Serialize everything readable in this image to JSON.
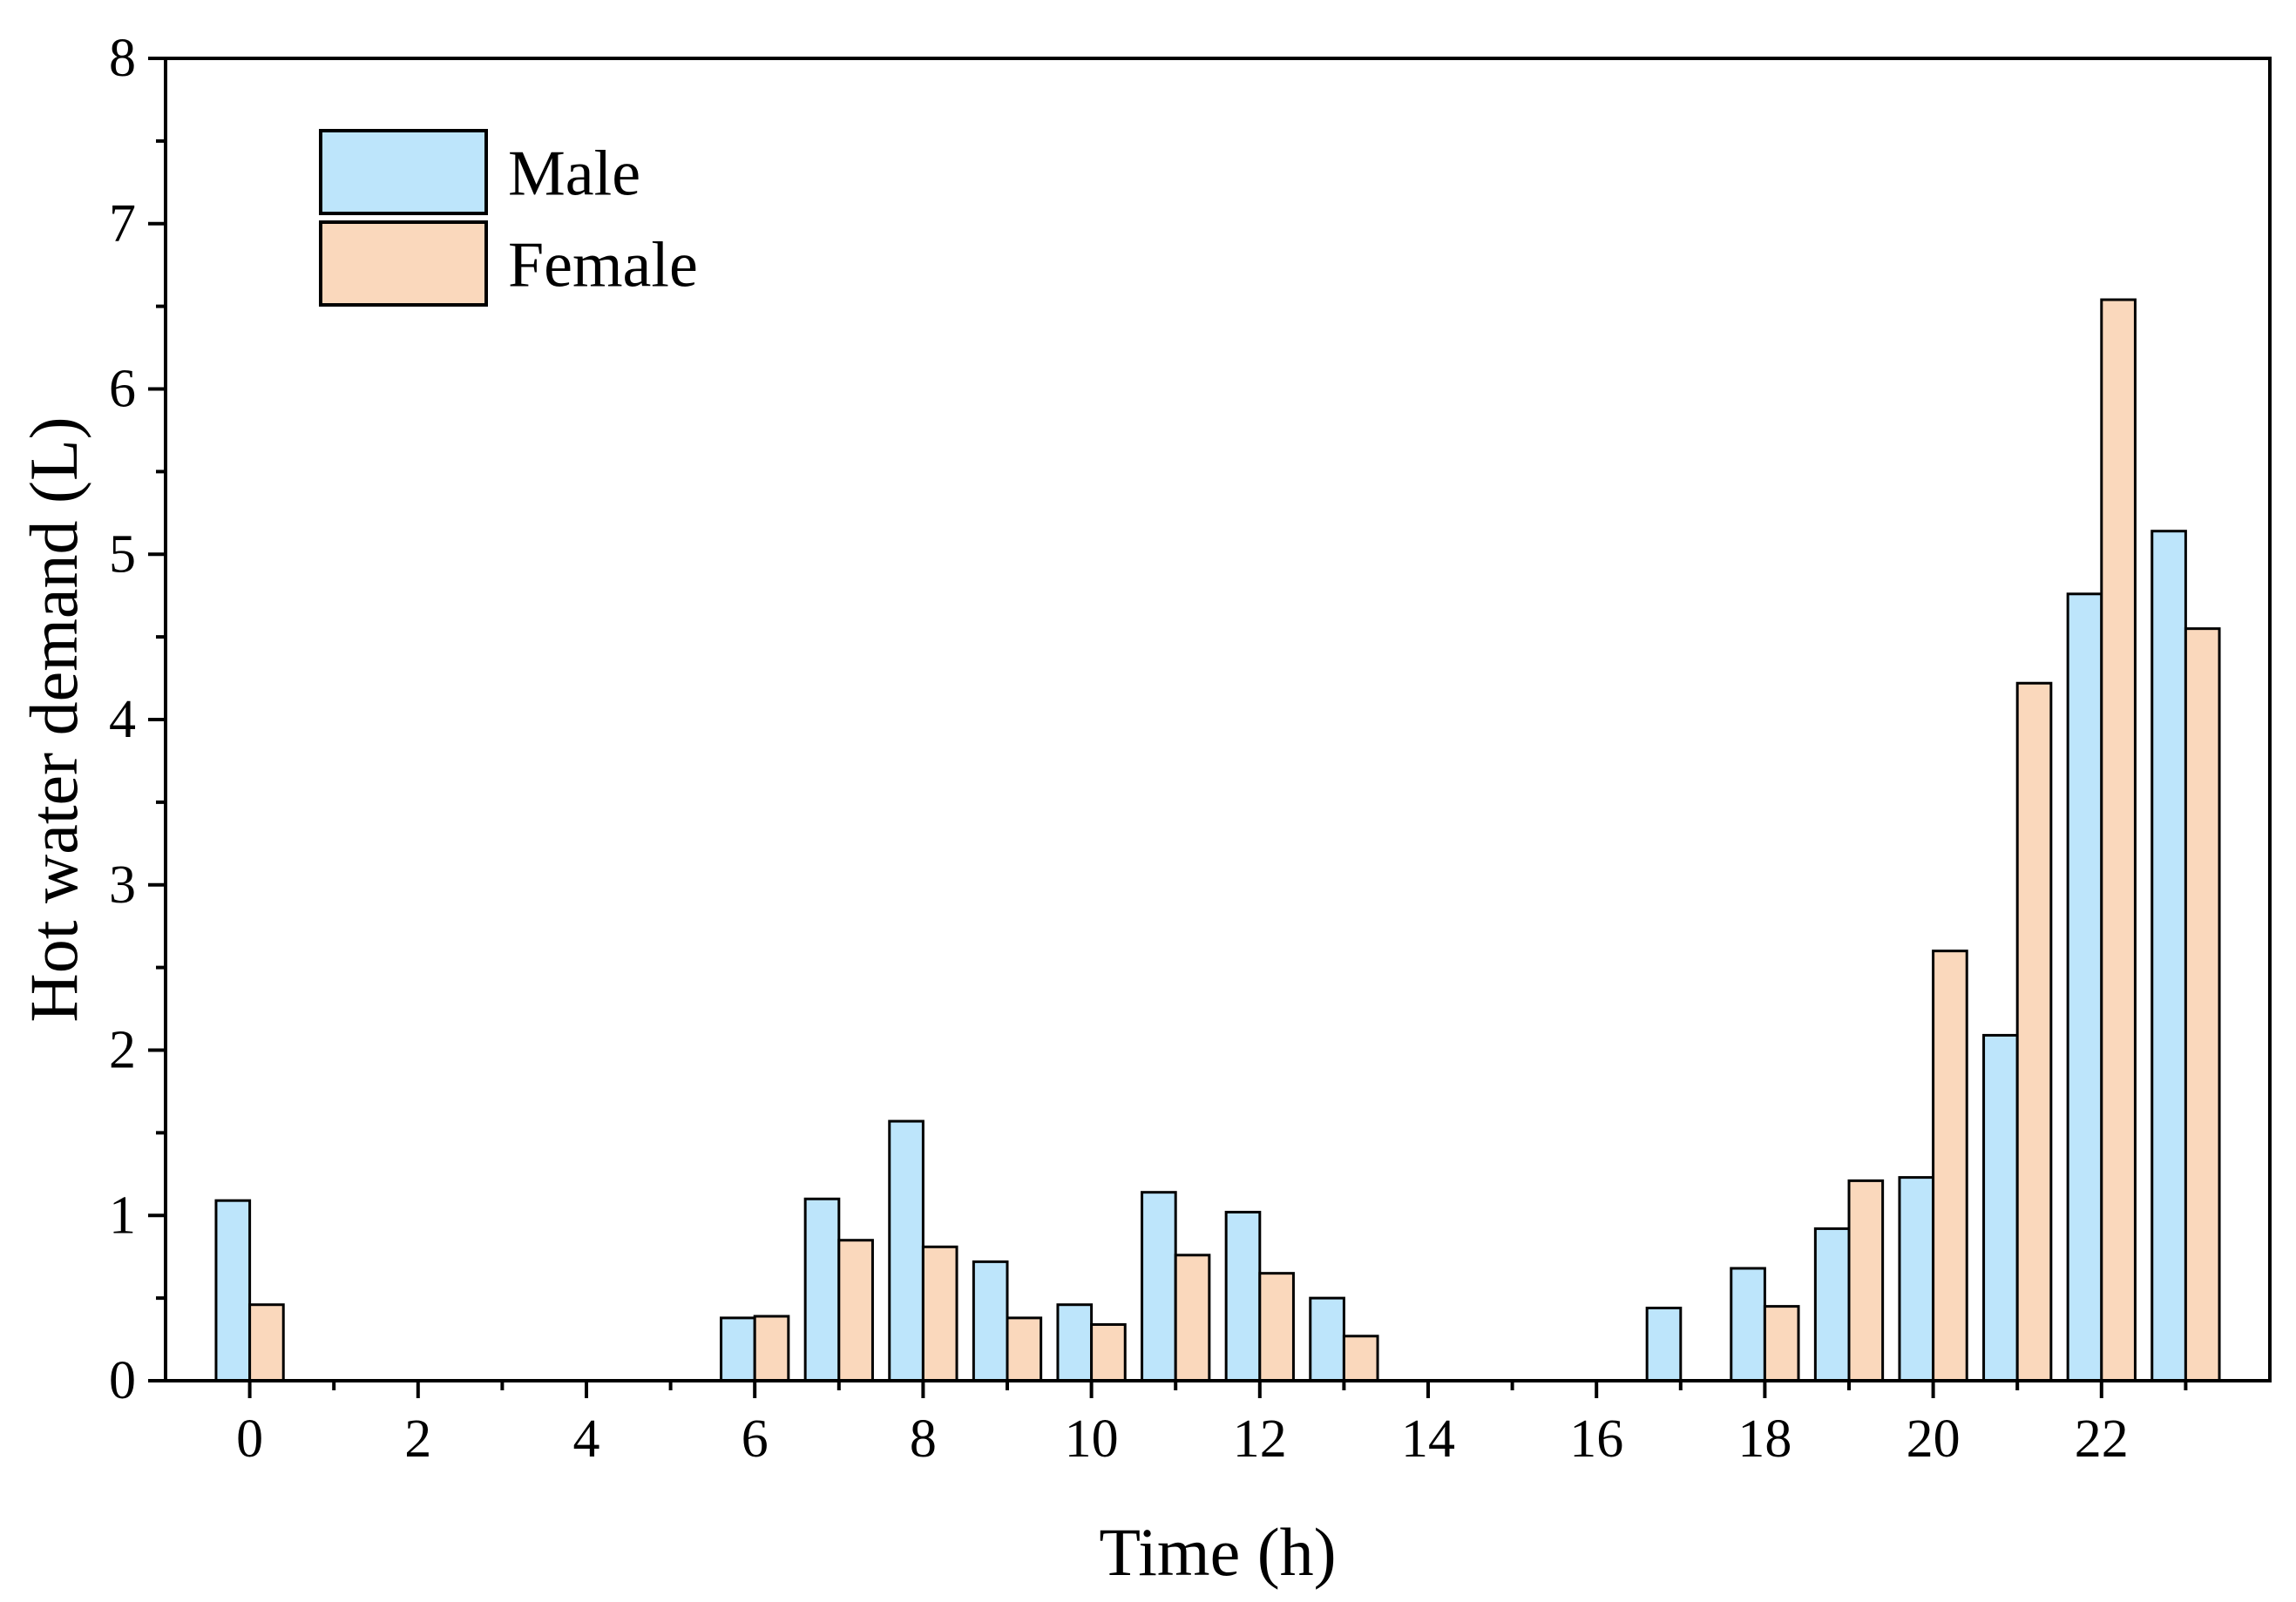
{
  "chart_data": {
    "type": "bar",
    "title": "",
    "xlabel": "Time (h)",
    "ylabel": "Hot water demand (L)",
    "x": [
      0,
      1,
      2,
      3,
      4,
      5,
      6,
      7,
      8,
      9,
      10,
      11,
      12,
      13,
      14,
      15,
      16,
      17,
      18,
      19,
      20,
      21,
      22,
      23
    ],
    "xlim": [
      -1,
      24
    ],
    "ylim": [
      0,
      8
    ],
    "x_ticks": [
      0,
      2,
      4,
      6,
      8,
      10,
      12,
      14,
      16,
      18,
      20,
      22
    ],
    "x_tick_labels": [
      "0",
      "2",
      "4",
      "6",
      "8",
      "10",
      "12",
      "14",
      "16",
      "18",
      "20",
      "22"
    ],
    "y_ticks": [
      0,
      1,
      2,
      3,
      4,
      5,
      6,
      7,
      8
    ],
    "y_tick_labels": [
      "0",
      "1",
      "2",
      "3",
      "4",
      "5",
      "6",
      "7",
      "8"
    ],
    "grid": false,
    "legend_position": "top-left",
    "series": [
      {
        "name": "Male",
        "color": "#BDE5FB",
        "values": [
          1.09,
          0,
          0,
          0,
          0,
          0,
          0.38,
          1.1,
          1.57,
          0.72,
          0.46,
          1.14,
          1.02,
          0.5,
          0,
          0,
          0,
          0.44,
          0.68,
          0.92,
          1.23,
          2.09,
          4.76,
          5.14
        ]
      },
      {
        "name": "Female",
        "color": "#FAD8BC",
        "values": [
          0.46,
          0,
          0,
          0,
          0,
          0,
          0.39,
          0.85,
          0.81,
          0.38,
          0.34,
          0.76,
          0.65,
          0.27,
          0,
          0,
          0,
          0,
          0.45,
          1.21,
          2.6,
          4.22,
          6.54,
          4.55
        ]
      }
    ]
  }
}
